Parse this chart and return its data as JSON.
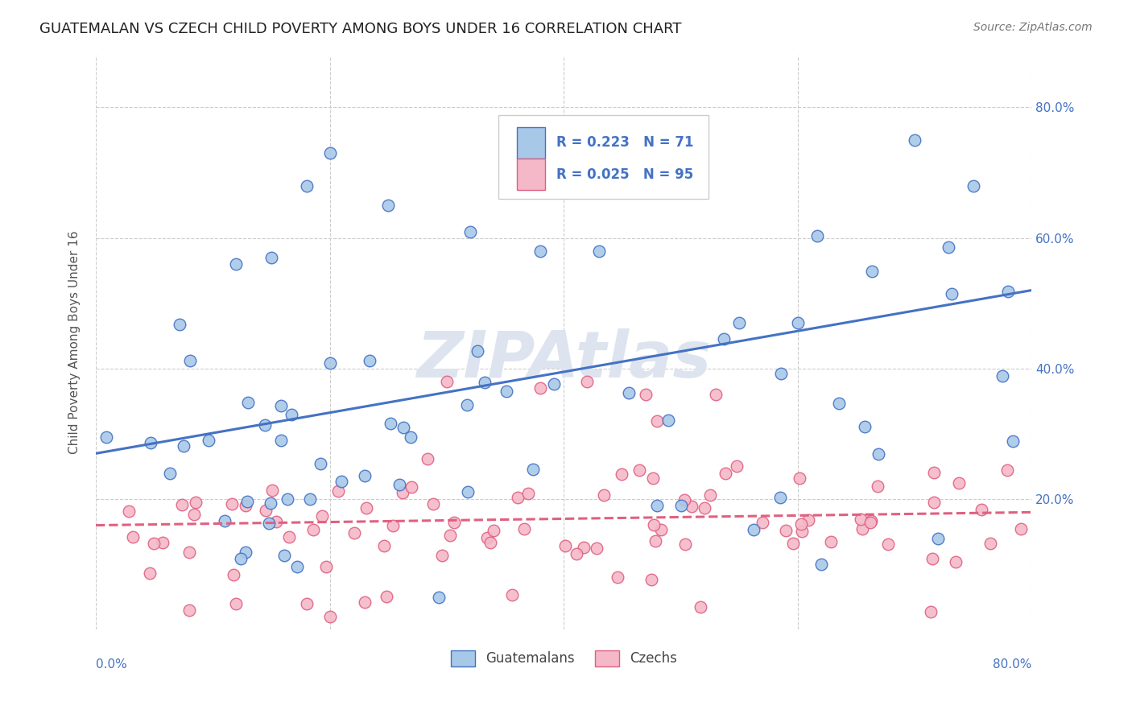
{
  "title": "GUATEMALAN VS CZECH CHILD POVERTY AMONG BOYS UNDER 16 CORRELATION CHART",
  "source": "Source: ZipAtlas.com",
  "ylabel": "Child Poverty Among Boys Under 16",
  "legend_label1": "Guatemalans",
  "legend_label2": "Czechs",
  "r_guatemalan": 0.223,
  "n_guatemalan": 71,
  "r_czech": 0.025,
  "n_czech": 95,
  "color_guatemalan_fill": "#a8c8e8",
  "color_guatemalan_edge": "#4472c4",
  "color_czech_fill": "#f4b8c8",
  "color_czech_edge": "#e06080",
  "color_line_blue": "#4472c4",
  "color_line_pink": "#e06080",
  "background_color": "#ffffff",
  "watermark_color": "#dde4ef",
  "guat_line_x": [
    0,
    80
  ],
  "guat_line_y": [
    27.0,
    52.0
  ],
  "czech_line_x": [
    0,
    80
  ],
  "czech_line_y": [
    16.0,
    18.0
  ],
  "xmin": 0,
  "xmax": 80,
  "ymin": 0,
  "ymax": 88,
  "yticks": [
    20,
    40,
    60,
    80
  ],
  "ytick_labels": [
    "20.0%",
    "40.0%",
    "60.0%",
    "80.0%"
  ],
  "xtick_label_left": "0.0%",
  "xtick_label_right": "80.0%"
}
